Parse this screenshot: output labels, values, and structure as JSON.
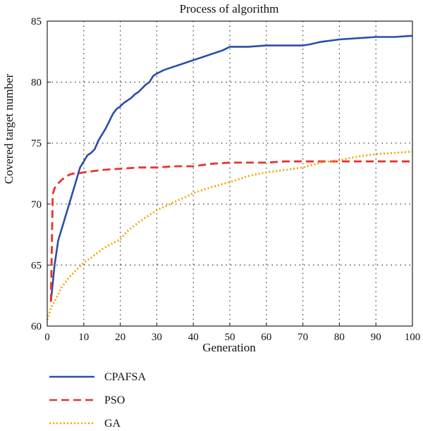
{
  "chart_data": {
    "type": "line",
    "title": "Process of algorithm",
    "xlabel": "Generation",
    "ylabel": "Covered target number",
    "xlim": [
      0,
      100
    ],
    "ylim": [
      60,
      85
    ],
    "xticks": [
      "0",
      "10",
      "20",
      "30",
      "40",
      "50",
      "60",
      "70",
      "80",
      "90",
      "100"
    ],
    "yticks": [
      "60",
      "65",
      "70",
      "75",
      "80",
      "85"
    ],
    "grid": true,
    "legend_position": "bottom-left-below",
    "series": [
      {
        "name": "CPAFSA",
        "color": "#2b4fa8",
        "style": "solid",
        "x": [
          1,
          2,
          3,
          4,
          5,
          6,
          7,
          8,
          9,
          10,
          11,
          12,
          13,
          14,
          15,
          16,
          17,
          18,
          19,
          20,
          21,
          22,
          23,
          24,
          25,
          26,
          27,
          28,
          29,
          30,
          32,
          34,
          36,
          38,
          40,
          42,
          44,
          46,
          48,
          50,
          55,
          60,
          65,
          70,
          72,
          75,
          80,
          85,
          90,
          95,
          100
        ],
        "y": [
          62,
          65,
          67,
          68,
          69,
          70,
          71,
          72,
          73,
          73.5,
          74,
          74.2,
          74.5,
          75.2,
          75.7,
          76.2,
          76.8,
          77.4,
          77.8,
          78,
          78.3,
          78.5,
          78.7,
          79,
          79.2,
          79.5,
          79.8,
          80,
          80.5,
          80.7,
          81,
          81.2,
          81.4,
          81.6,
          81.8,
          82,
          82.2,
          82.4,
          82.6,
          82.9,
          82.9,
          83,
          83,
          83,
          83.1,
          83.3,
          83.5,
          83.6,
          83.7,
          83.7,
          83.8
        ]
      },
      {
        "name": "PSO",
        "color": "#e8342b",
        "style": "dashed",
        "x": [
          1,
          1.5,
          2,
          3,
          4,
          5,
          6,
          7,
          8,
          10,
          15,
          20,
          25,
          30,
          35,
          40,
          45,
          50,
          60,
          65,
          70,
          80,
          90,
          100
        ],
        "y": [
          62,
          70.8,
          71.3,
          71.7,
          72,
          72.2,
          72.4,
          72.5,
          72.5,
          72.6,
          72.8,
          72.9,
          73,
          73,
          73.1,
          73.1,
          73.3,
          73.4,
          73.4,
          73.5,
          73.5,
          73.5,
          73.5,
          73.5
        ]
      },
      {
        "name": "GA",
        "color": "#f2a600",
        "style": "dotted",
        "x": [
          0,
          1,
          2,
          3,
          4,
          5,
          6,
          8,
          10,
          12,
          15,
          18,
          20,
          22,
          25,
          28,
          30,
          33,
          35,
          38,
          40,
          45,
          50,
          55,
          60,
          65,
          70,
          75,
          80,
          85,
          90,
          95,
          100
        ],
        "y": [
          60.5,
          61.5,
          62,
          62.6,
          63.2,
          63.6,
          64,
          64.6,
          65.2,
          65.6,
          66.3,
          66.8,
          67.1,
          67.8,
          68.5,
          69.1,
          69.5,
          69.9,
          70.2,
          70.6,
          70.9,
          71.4,
          71.8,
          72.3,
          72.6,
          72.8,
          73,
          73.4,
          73.6,
          73.9,
          74.1,
          74.2,
          74.3
        ]
      }
    ]
  }
}
